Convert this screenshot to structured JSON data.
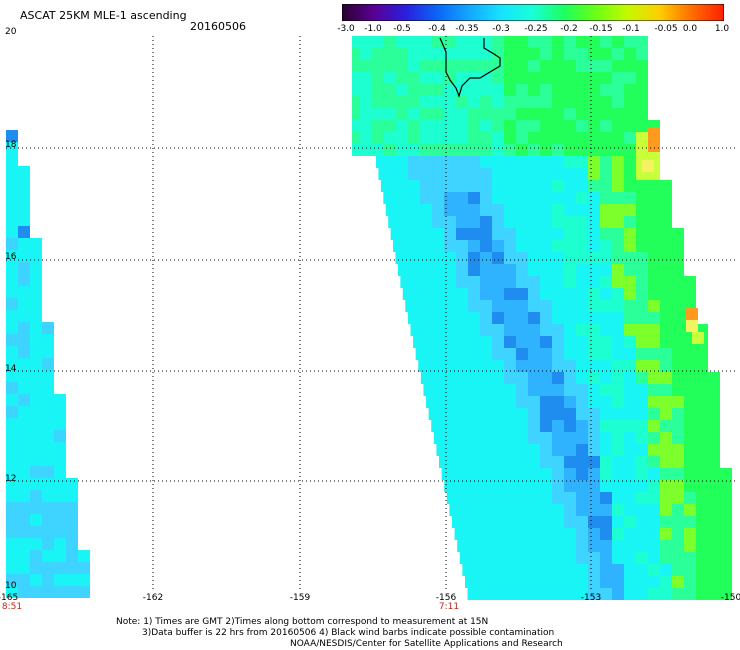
{
  "header": {
    "title": "ASCAT 25KM MLE-1 ascending",
    "date": "20160506"
  },
  "colorbar": {
    "ticks": [
      "-3.0",
      "-1.0",
      "-0.5",
      "-0.4",
      "-0.35",
      "-0.3",
      "-0.25",
      "-0.2",
      "-0.15",
      "-0.1",
      "-0.05",
      "0.0",
      "1.0"
    ],
    "colors": [
      "#2a0030",
      "#5a0092",
      "#2a1fe0",
      "#0a66f5",
      "#13a7ff",
      "#16e3ff",
      "#18ffd6",
      "#1dff5e",
      "#6cff12",
      "#c7f800",
      "#ffcc00",
      "#ff6c00",
      "#ff1e00"
    ]
  },
  "map": {
    "lat_ticks": [
      "20",
      "18",
      "16",
      "14",
      "12",
      "10"
    ],
    "lon_ticks": [
      "-165",
      "-162",
      "-159",
      "-156",
      "-153",
      "-150"
    ],
    "times": [
      "8:51",
      "7:11"
    ],
    "land_color": "#000000",
    "ocean_background": "#ffffff",
    "palette": {
      "deep_blue": "#1f8cf0",
      "blue": "#2fb3ff",
      "light_blue": "#3fd3ff",
      "cyan": "#19f4f4",
      "aqua": "#1dffd0",
      "sea_green": "#2bff9a",
      "green": "#22ff5a",
      "lime": "#7cff2a",
      "yellow_green": "#c8ff3a",
      "yellow": "#f3f260",
      "orange": "#ff9a1f"
    }
  },
  "notes": [
    "Note: 1) Times are GMT 2)Times along bottom correspond to measurement at 15N",
    "3)Data buffer is 22 hrs from 20160506 4) Black wind barbs indicate possible contamination",
    "NOAA/NESDIS/Center for Satellite Applications and Research"
  ]
}
